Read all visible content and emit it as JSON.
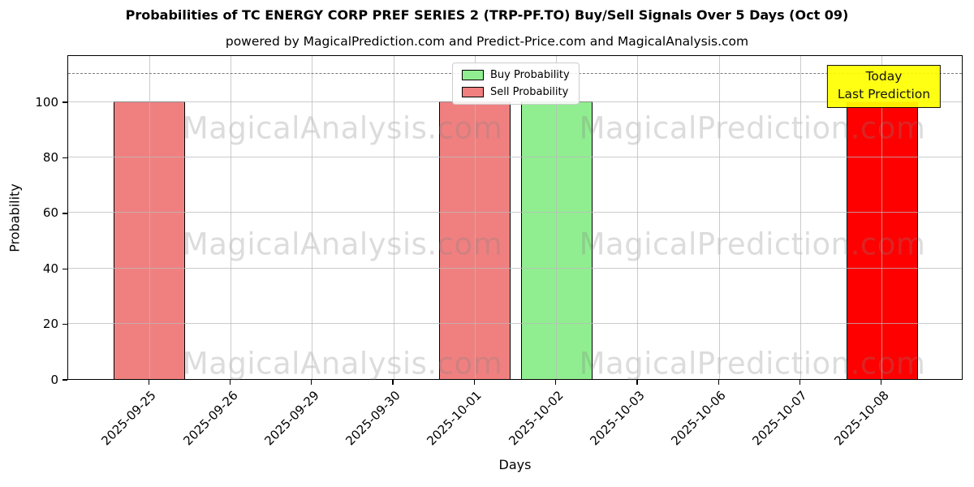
{
  "title": "Probabilities of TC ENERGY CORP PREF SERIES 2 (TRP-PF.TO) Buy/Sell Signals Over 5 Days (Oct 09)",
  "subtitle": "powered by MagicalPrediction.com and Predict-Price.com and MagicalAnalysis.com",
  "legend": {
    "items": [
      {
        "label": "Buy Probability",
        "color": "#90ee90"
      },
      {
        "label": "Sell Probability",
        "color": "#f08080"
      }
    ]
  },
  "annotation_box": {
    "line1": "Today",
    "line2": "Last Prediction",
    "bg": "#ffff00"
  },
  "watermarks": {
    "left": "MagicalAnalysis.com",
    "right": "MagicalPrediction.com"
  },
  "chart_data": {
    "type": "bar",
    "title": "Probabilities of TC ENERGY CORP PREF SERIES 2 (TRP-PF.TO) Buy/Sell Signals Over 5 Days (Oct 09)",
    "xlabel": "Days",
    "ylabel": "Probability",
    "ylim": [
      0,
      117
    ],
    "yticks": [
      0,
      20,
      40,
      60,
      80,
      100
    ],
    "dashed_gridline_y": 110,
    "grid": true,
    "legend_position": "upper center",
    "categories": [
      "2025-09-25",
      "2025-09-26",
      "2025-09-29",
      "2025-09-30",
      "2025-10-01",
      "2025-10-02",
      "2025-10-03",
      "2025-10-06",
      "2025-10-07",
      "2025-10-08"
    ],
    "series": [
      {
        "name": "Buy Probability",
        "color": "#90ee90",
        "edge": "#000000",
        "values": [
          0,
          0,
          0,
          0,
          0,
          100,
          0,
          0,
          0,
          0
        ]
      },
      {
        "name": "Sell Probability",
        "color": "#f08080",
        "edge": "#000000",
        "values": [
          100,
          0,
          0,
          0,
          100,
          0,
          0,
          0,
          0,
          0
        ]
      },
      {
        "name": "Today Last Prediction (Sell)",
        "color": "#ff0000",
        "edge": "#000000",
        "values": [
          0,
          0,
          0,
          0,
          0,
          0,
          0,
          0,
          0,
          100
        ]
      }
    ]
  }
}
